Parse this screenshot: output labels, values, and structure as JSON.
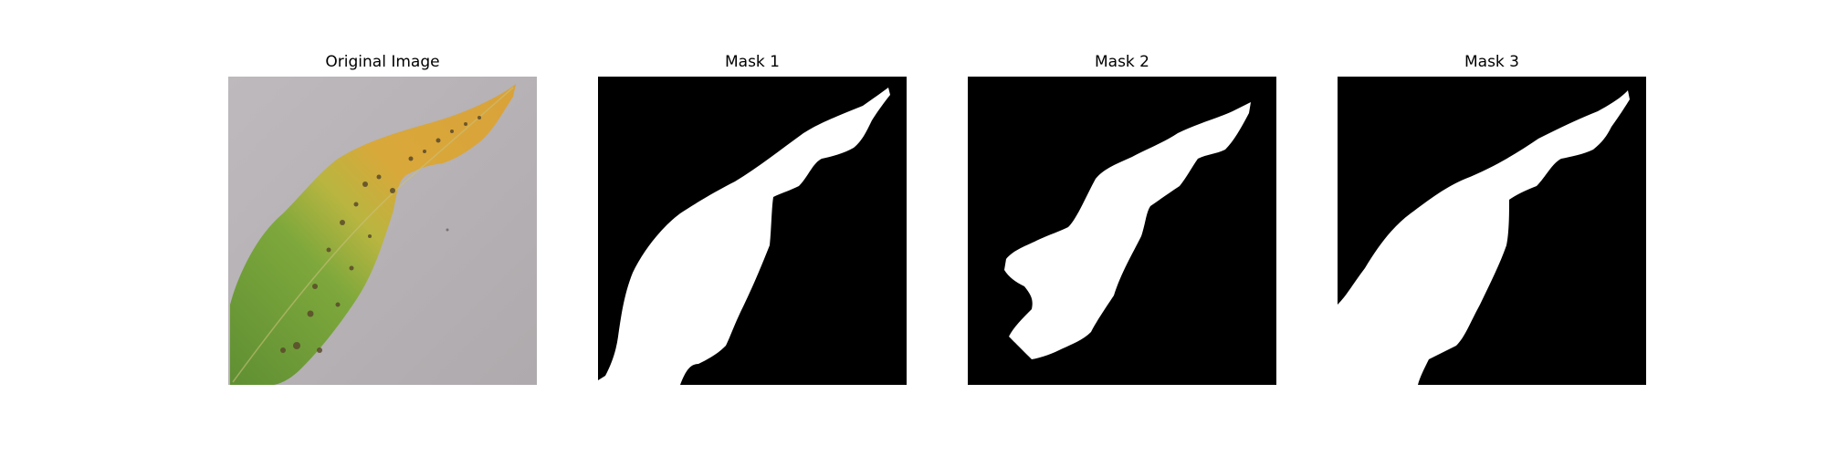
{
  "panels": [
    {
      "title": "Original Image",
      "kind": "photo"
    },
    {
      "title": "Mask 1",
      "kind": "mask"
    },
    {
      "title": "Mask 2",
      "kind": "mask"
    },
    {
      "title": "Mask 3",
      "kind": "mask"
    }
  ],
  "colors": {
    "background": "#ffffff",
    "mask_background": "#000000",
    "mask_foreground": "#ffffff",
    "photo_background": "#b9b5b8",
    "leaf_yellow": "#d9a53a",
    "leaf_green": "#6f9a3a",
    "leaf_spots": "#5a4a2a"
  }
}
